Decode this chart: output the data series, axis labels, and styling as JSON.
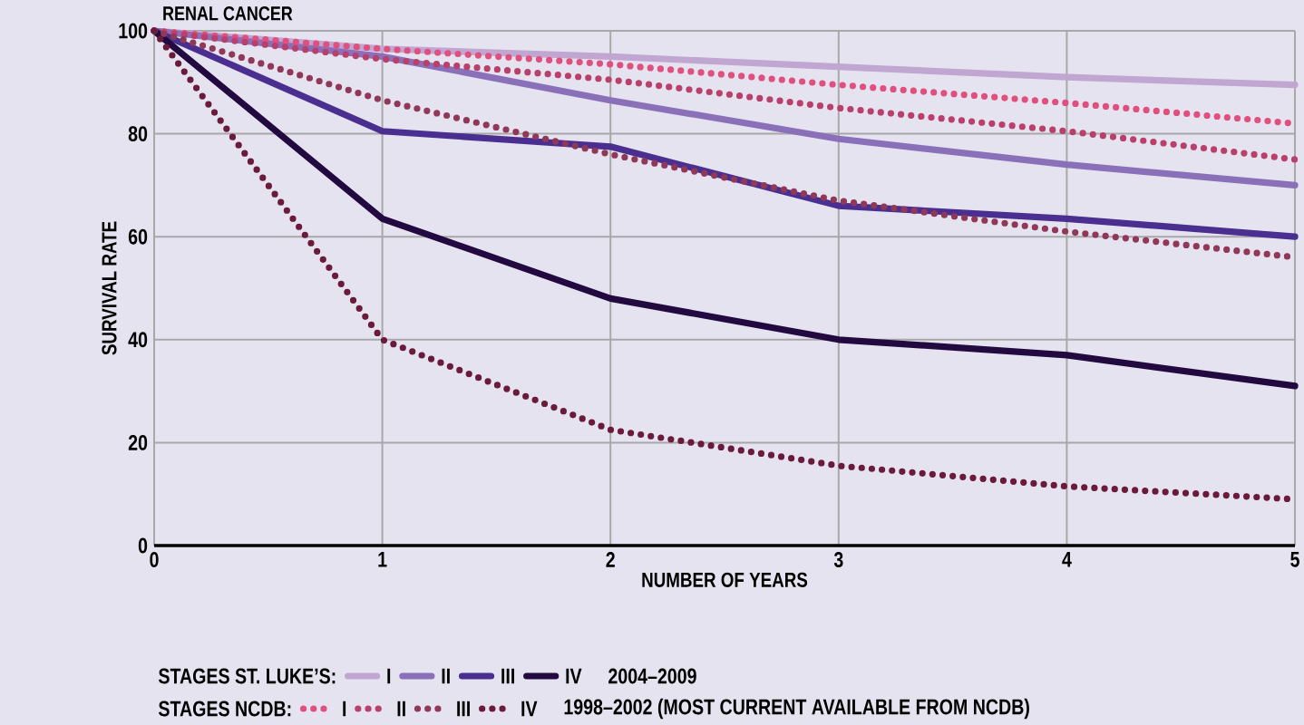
{
  "chart_data": {
    "type": "line",
    "title": "RENAL CANCER",
    "xlabel": "NUMBER OF YEARS",
    "ylabel": "SURVIVAL RATE",
    "x": [
      0,
      1,
      2,
      3,
      4,
      5
    ],
    "series": [
      {
        "name": "I",
        "color": "#c0a6d0",
        "line_style": "solid",
        "values": [
          100,
          96.5,
          95,
          93,
          91,
          89.5
        ]
      },
      {
        "name": "II",
        "color": "#8a70b8",
        "line_style": "solid",
        "values": [
          100,
          95,
          86.5,
          79,
          74,
          70
        ]
      },
      {
        "name": "III",
        "color": "#4a2f90",
        "line_style": "solid",
        "values": [
          100,
          80.5,
          77.5,
          66,
          63.5,
          60
        ]
      },
      {
        "name": "IV",
        "color": "#22093f",
        "line_style": "solid",
        "values": [
          100,
          63.5,
          48,
          40,
          37,
          31
        ]
      },
      {
        "name": "I",
        "color": "#e0507f",
        "line_style": "dotted",
        "values": [
          100,
          96.5,
          93.5,
          89.5,
          86,
          82
        ]
      },
      {
        "name": "II",
        "color": "#b8406a",
        "line_style": "dotted",
        "values": [
          100,
          94.5,
          90.5,
          85,
          80.5,
          75
        ]
      },
      {
        "name": "III",
        "color": "#903858",
        "line_style": "dotted",
        "values": [
          100,
          86.5,
          76,
          67,
          61,
          56
        ]
      },
      {
        "name": "IV",
        "color": "#6a1a3a",
        "line_style": "dotted",
        "values": [
          100,
          40,
          22.5,
          15.5,
          11.5,
          9
        ]
      }
    ],
    "annotations": [
      "STAGES ST. LUKE’S:",
      "2004–2009",
      "STAGES NCDB:",
      "1998–2002 (MOST CURRENT AVAILABLE FROM NCDB)"
    ],
    "xlim": [
      0,
      5
    ],
    "ylim": [
      0,
      100
    ],
    "xticks": [
      0,
      1,
      2,
      3,
      4,
      5
    ],
    "yticks": [
      0,
      20,
      40,
      60,
      80,
      100
    ],
    "grid": true,
    "legend": "bottom"
  }
}
